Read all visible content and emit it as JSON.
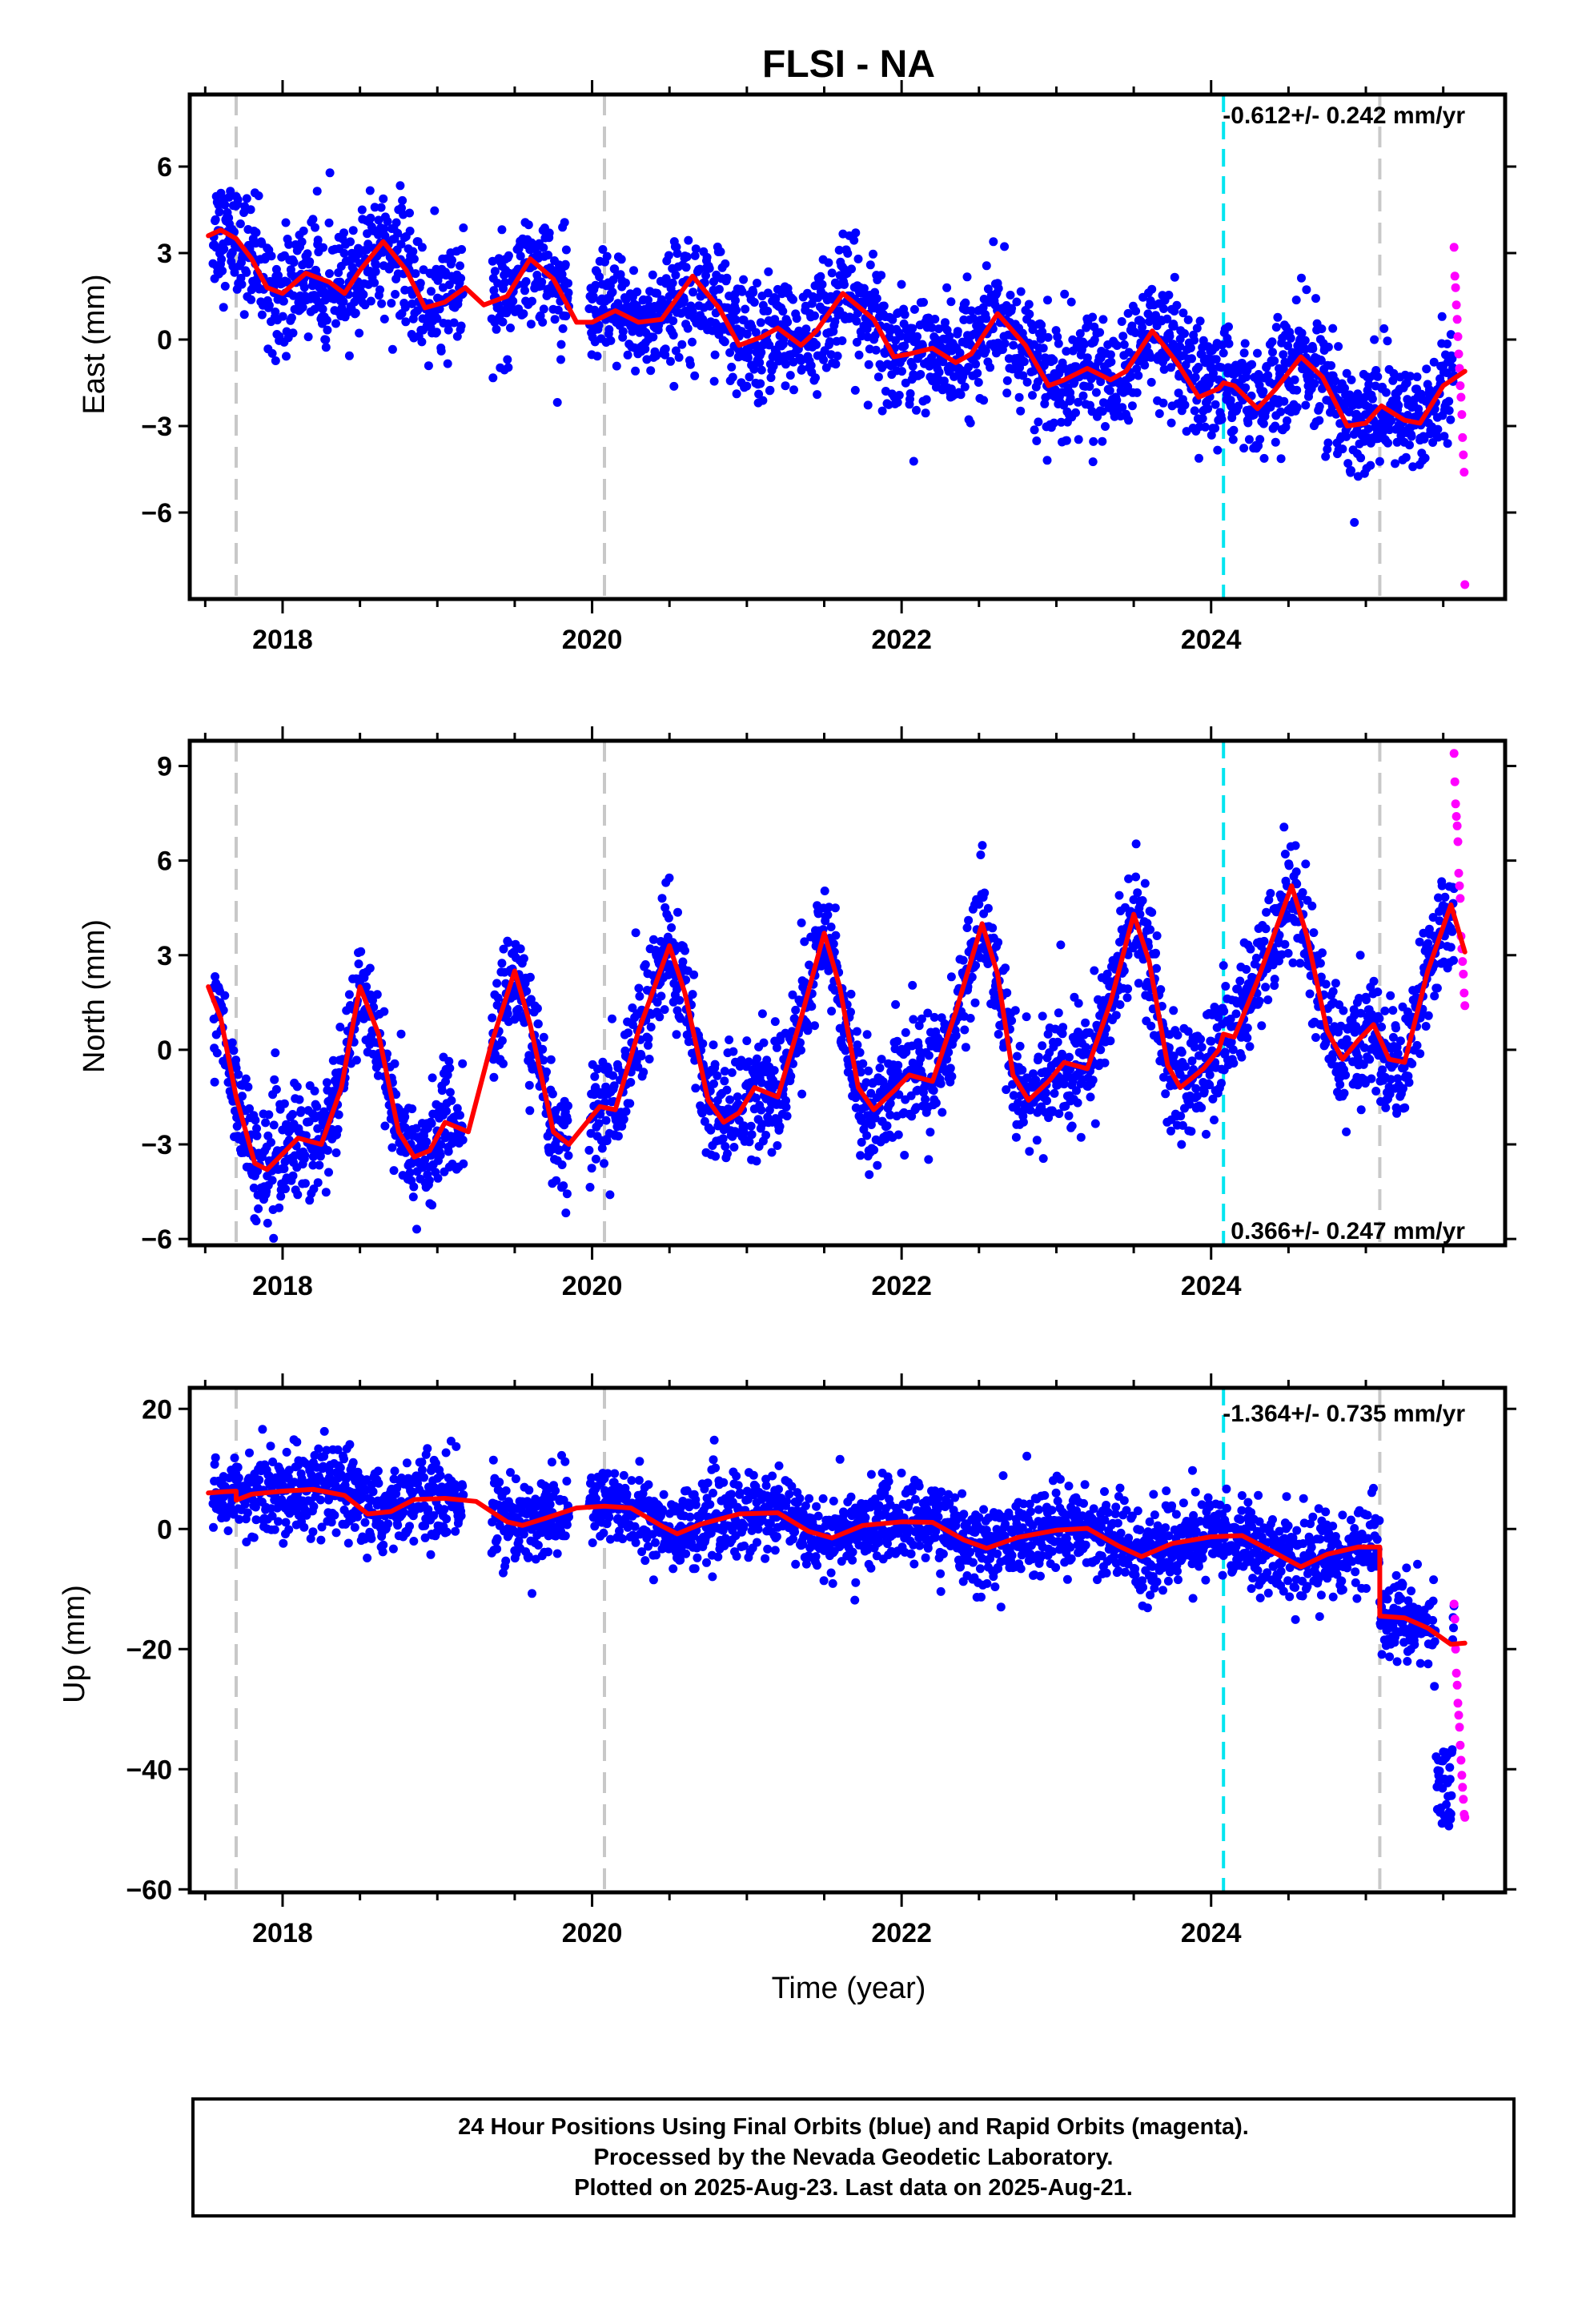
{
  "title": "FLSI - NA",
  "colors": {
    "final_orbits": "#0000ff",
    "rapid_orbits": "#ff00ff",
    "model": "#ff0000",
    "equipment_change": "#c8c8c8",
    "earthquake": "#00e5f0"
  },
  "xlabel": "Time (year)",
  "footer": {
    "line1": "24 Hour Positions Using Final Orbits (blue) and Rapid Orbits (magenta).",
    "line2": "Processed by the Nevada Geodetic Laboratory.",
    "line3": "Plotted on 2025-Aug-23. Last data on 2025-Aug-21."
  },
  "chart_data": [
    {
      "type": "scatter",
      "component": "east",
      "ylabel": "East (mm)",
      "rate_text": "-0.612+/- 0.242 mm/yr",
      "rate_position": "top-right",
      "xlim": [
        2017.4,
        2025.9
      ],
      "ylim": [
        -9,
        8.5
      ],
      "xticks": [
        2018,
        2020,
        2022,
        2024
      ],
      "xtick_labels": [
        "2018",
        "2020",
        "2022",
        "2024"
      ],
      "yticks": [
        -6,
        -3,
        0,
        3,
        6
      ],
      "ytick_labels": [
        "−6",
        "−3",
        "0",
        "3",
        "6"
      ],
      "grid": false,
      "data_start": 2017.55,
      "data_end": 2025.64,
      "rapid_start": 2025.57,
      "equipment_changes": [
        2017.7,
        2020.08,
        2025.09
      ],
      "earthquakes": [
        2024.08
      ],
      "noise_sigma": 1.0,
      "model": [
        [
          2017.52,
          3.6
        ],
        [
          2017.6,
          3.8
        ],
        [
          2017.7,
          3.5
        ],
        [
          2017.8,
          2.8
        ],
        [
          2017.9,
          1.8
        ],
        [
          2018.0,
          1.6
        ],
        [
          2018.15,
          2.3
        ],
        [
          2018.3,
          2.0
        ],
        [
          2018.4,
          1.6
        ],
        [
          2018.5,
          2.4
        ],
        [
          2018.65,
          3.4
        ],
        [
          2018.8,
          2.4
        ],
        [
          2018.92,
          1.1
        ],
        [
          2019.05,
          1.3
        ],
        [
          2019.18,
          1.8
        ],
        [
          2019.3,
          1.2
        ],
        [
          2019.45,
          1.5
        ],
        [
          2019.6,
          2.8
        ],
        [
          2019.75,
          2.1
        ],
        [
          2019.9,
          0.6
        ],
        [
          2020.0,
          0.6
        ],
        [
          2020.15,
          1.0
        ],
        [
          2020.3,
          0.6
        ],
        [
          2020.45,
          0.7
        ],
        [
          2020.65,
          2.2
        ],
        [
          2020.82,
          1.1
        ],
        [
          2020.95,
          -0.2
        ],
        [
          2021.1,
          0.1
        ],
        [
          2021.2,
          0.4
        ],
        [
          2021.35,
          -0.2
        ],
        [
          2021.45,
          0.3
        ],
        [
          2021.62,
          1.6
        ],
        [
          2021.82,
          0.7
        ],
        [
          2021.95,
          -0.6
        ],
        [
          2022.05,
          -0.5
        ],
        [
          2022.2,
          -0.3
        ],
        [
          2022.35,
          -0.8
        ],
        [
          2022.45,
          -0.5
        ],
        [
          2022.62,
          0.9
        ],
        [
          2022.8,
          -0.2
        ],
        [
          2022.95,
          -1.6
        ],
        [
          2023.05,
          -1.4
        ],
        [
          2023.2,
          -1.0
        ],
        [
          2023.35,
          -1.4
        ],
        [
          2023.45,
          -1.1
        ],
        [
          2023.62,
          0.3
        ],
        [
          2023.78,
          -0.8
        ],
        [
          2023.92,
          -2.0
        ],
        [
          2024.05,
          -1.7
        ],
        [
          2024.08,
          -1.5
        ],
        [
          2024.15,
          -1.6
        ],
        [
          2024.3,
          -2.4
        ],
        [
          2024.42,
          -1.7
        ],
        [
          2024.58,
          -0.6
        ],
        [
          2024.72,
          -1.3
        ],
        [
          2024.88,
          -3.0
        ],
        [
          2025.0,
          -2.9
        ],
        [
          2025.1,
          -2.3
        ],
        [
          2025.25,
          -2.8
        ],
        [
          2025.35,
          -2.9
        ],
        [
          2025.5,
          -1.6
        ],
        [
          2025.64,
          -1.1
        ]
      ],
      "rapid_values": [
        3.2,
        2.2,
        1.8,
        1.2,
        0.7,
        0.1,
        -0.5,
        -1.0,
        -1.6,
        -2.0,
        -2.6,
        -3.4,
        -4.0,
        -4.6,
        -8.5
      ]
    },
    {
      "type": "scatter",
      "component": "north",
      "ylabel": "North (mm)",
      "rate_text": "0.366+/- 0.247 mm/yr",
      "rate_position": "bottom-right",
      "xlim": [
        2017.4,
        2025.9
      ],
      "ylim": [
        -6.2,
        9.8
      ],
      "xticks": [
        2018,
        2020,
        2022,
        2024
      ],
      "xtick_labels": [
        "2018",
        "2020",
        "2022",
        "2024"
      ],
      "yticks": [
        -6,
        -3,
        0,
        3,
        6,
        9
      ],
      "ytick_labels": [
        "−6",
        "−3",
        "0",
        "3",
        "6",
        "9"
      ],
      "grid": false,
      "data_start": 2017.55,
      "data_end": 2025.64,
      "rapid_start": 2025.57,
      "equipment_changes": [
        2017.7,
        2020.08,
        2025.09
      ],
      "earthquakes": [
        2024.08
      ],
      "noise_sigma": 0.9,
      "model": [
        [
          2017.52,
          2.0
        ],
        [
          2017.6,
          1.0
        ],
        [
          2017.7,
          -1.5
        ],
        [
          2017.82,
          -3.6
        ],
        [
          2017.9,
          -3.8
        ],
        [
          2018.0,
          -3.3
        ],
        [
          2018.1,
          -2.8
        ],
        [
          2018.25,
          -3.0
        ],
        [
          2018.38,
          -1.2
        ],
        [
          2018.5,
          2.0
        ],
        [
          2018.62,
          0.5
        ],
        [
          2018.75,
          -2.6
        ],
        [
          2018.85,
          -3.4
        ],
        [
          2018.95,
          -3.2
        ],
        [
          2019.05,
          -2.3
        ],
        [
          2019.2,
          -2.6
        ],
        [
          2019.35,
          0.2
        ],
        [
          2019.5,
          2.5
        ],
        [
          2019.6,
          0.8
        ],
        [
          2019.75,
          -2.6
        ],
        [
          2019.85,
          -3.0
        ],
        [
          2019.95,
          -2.4
        ],
        [
          2020.05,
          -1.8
        ],
        [
          2020.15,
          -1.9
        ],
        [
          2020.3,
          0.6
        ],
        [
          2020.5,
          3.3
        ],
        [
          2020.6,
          1.8
        ],
        [
          2020.75,
          -1.6
        ],
        [
          2020.85,
          -2.3
        ],
        [
          2020.95,
          -2.0
        ],
        [
          2021.05,
          -1.2
        ],
        [
          2021.2,
          -1.5
        ],
        [
          2021.35,
          1.0
        ],
        [
          2021.5,
          3.7
        ],
        [
          2021.6,
          2.0
        ],
        [
          2021.72,
          -1.2
        ],
        [
          2021.82,
          -1.9
        ],
        [
          2021.95,
          -1.3
        ],
        [
          2022.05,
          -0.8
        ],
        [
          2022.2,
          -1.0
        ],
        [
          2022.35,
          1.2
        ],
        [
          2022.52,
          4.0
        ],
        [
          2022.62,
          2.4
        ],
        [
          2022.72,
          -0.8
        ],
        [
          2022.82,
          -1.6
        ],
        [
          2022.95,
          -1.0
        ],
        [
          2023.05,
          -0.4
        ],
        [
          2023.2,
          -0.6
        ],
        [
          2023.35,
          1.5
        ],
        [
          2023.5,
          4.3
        ],
        [
          2023.6,
          2.8
        ],
        [
          2023.72,
          -0.5
        ],
        [
          2023.8,
          -1.2
        ],
        [
          2023.95,
          -0.6
        ],
        [
          2024.05,
          0.0
        ],
        [
          2024.08,
          0.5
        ],
        [
          2024.15,
          0.4
        ],
        [
          2024.3,
          2.2
        ],
        [
          2024.52,
          5.2
        ],
        [
          2024.62,
          3.6
        ],
        [
          2024.75,
          0.6
        ],
        [
          2024.85,
          -0.3
        ],
        [
          2024.95,
          0.3
        ],
        [
          2025.05,
          0.8
        ],
        [
          2025.15,
          -0.3
        ],
        [
          2025.25,
          -0.4
        ],
        [
          2025.4,
          2.5
        ],
        [
          2025.55,
          4.6
        ],
        [
          2025.64,
          3.1
        ]
      ],
      "rapid_values": [
        9.4,
        8.5,
        7.8,
        7.4,
        7.1,
        6.6,
        5.6,
        5.2,
        4.8,
        3.6,
        3.2,
        2.8,
        2.4,
        1.8,
        1.4
      ]
    },
    {
      "type": "scatter",
      "component": "up",
      "ylabel": "Up (mm)",
      "rate_text": "-1.364+/- 0.735 mm/yr",
      "rate_position": "top-right",
      "xlim": [
        2017.4,
        2025.9
      ],
      "ylim": [
        -60.5,
        23.5
      ],
      "xticks": [
        2018,
        2020,
        2022,
        2024
      ],
      "xtick_labels": [
        "2018",
        "2020",
        "2022",
        "2024"
      ],
      "yticks": [
        -60,
        -40,
        -20,
        0,
        20
      ],
      "ytick_labels": [
        "−60",
        "−40",
        "−20",
        "0",
        "20"
      ],
      "grid": false,
      "data_start": 2017.55,
      "data_end": 2025.64,
      "rapid_start": 2025.57,
      "equipment_changes": [
        2017.7,
        2020.08,
        2025.09
      ],
      "earthquakes": [
        2024.08
      ],
      "noise_sigma": 3.5,
      "model": [
        [
          2017.52,
          6.0
        ],
        [
          2017.62,
          6.2
        ],
        [
          2017.7,
          6.3
        ],
        [
          2017.7,
          4.8
        ],
        [
          2017.8,
          5.8
        ],
        [
          2018.0,
          6.3
        ],
        [
          2018.2,
          6.6
        ],
        [
          2018.4,
          5.6
        ],
        [
          2018.55,
          2.5
        ],
        [
          2018.7,
          2.9
        ],
        [
          2018.85,
          4.9
        ],
        [
          2019.05,
          5.1
        ],
        [
          2019.25,
          4.6
        ],
        [
          2019.45,
          1.2
        ],
        [
          2019.55,
          0.6
        ],
        [
          2019.7,
          1.8
        ],
        [
          2019.9,
          3.5
        ],
        [
          2020.08,
          3.8
        ],
        [
          2020.25,
          3.5
        ],
        [
          2020.45,
          0.5
        ],
        [
          2020.55,
          -0.8
        ],
        [
          2020.7,
          0.8
        ],
        [
          2020.95,
          2.5
        ],
        [
          2021.2,
          2.7
        ],
        [
          2021.4,
          -0.4
        ],
        [
          2021.55,
          -1.5
        ],
        [
          2021.75,
          0.6
        ],
        [
          2022.0,
          1.2
        ],
        [
          2022.2,
          1.1
        ],
        [
          2022.4,
          -1.8
        ],
        [
          2022.55,
          -3.2
        ],
        [
          2022.75,
          -1.4
        ],
        [
          2023.0,
          -0.2
        ],
        [
          2023.2,
          0.1
        ],
        [
          2023.4,
          -2.8
        ],
        [
          2023.55,
          -4.6
        ],
        [
          2023.75,
          -2.4
        ],
        [
          2024.0,
          -1.3
        ],
        [
          2024.2,
          -1.1
        ],
        [
          2024.4,
          -3.8
        ],
        [
          2024.58,
          -6.3
        ],
        [
          2024.75,
          -4.2
        ],
        [
          2024.95,
          -3.0
        ],
        [
          2025.09,
          -3.0
        ],
        [
          2025.09,
          -14.5
        ],
        [
          2025.25,
          -14.8
        ],
        [
          2025.4,
          -16.5
        ],
        [
          2025.55,
          -19.2
        ],
        [
          2025.64,
          -19.0
        ]
      ],
      "offset_cluster": [
        2025.45,
        2025.56,
        -49.5,
        -36
      ],
      "rapid_values": [
        -12.5,
        -15.0,
        -20.0,
        -24.0,
        -26.0,
        -29.0,
        -31.0,
        -33.0,
        -36.0,
        -38.5,
        -41.0,
        -43.0,
        -45.0,
        -47.5,
        -48.0
      ]
    }
  ]
}
